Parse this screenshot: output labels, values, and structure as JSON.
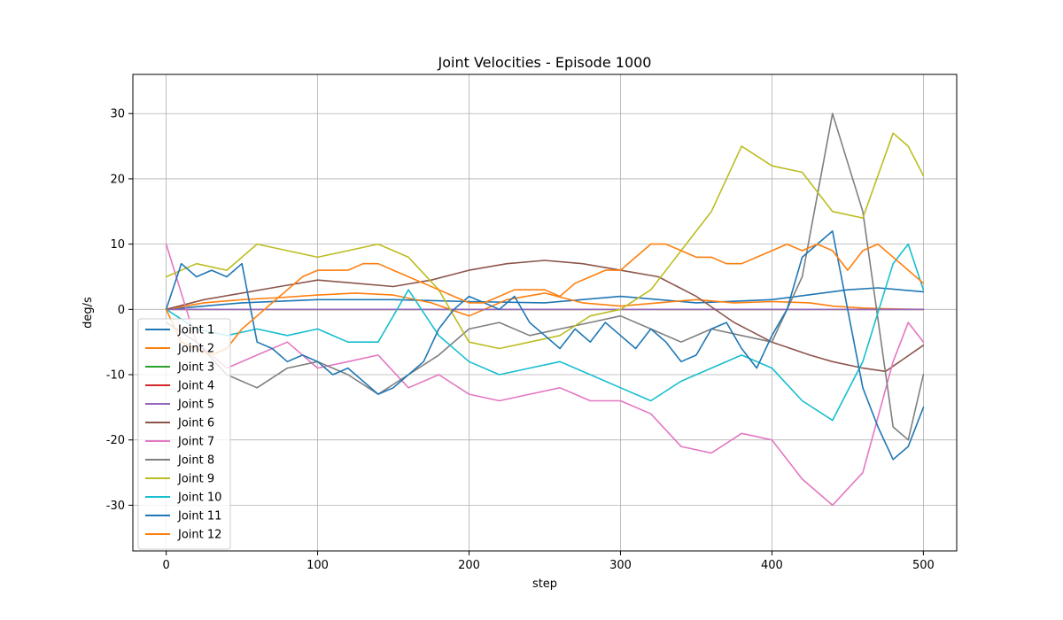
{
  "chart_data": {
    "type": "line",
    "title": "Joint Velocities - Episode 1000",
    "xlabel": "step",
    "ylabel": "deg/s",
    "xlim": [
      -22,
      522
    ],
    "ylim": [
      -37,
      36
    ],
    "xticks": [
      0,
      100,
      200,
      300,
      400,
      500
    ],
    "yticks": [
      -30,
      -20,
      -10,
      0,
      10,
      20,
      30
    ],
    "grid": true,
    "legend_position": "lower-left",
    "colors": {
      "c1": "#1f77b4",
      "c2": "#ff7f0e",
      "c3": "#2ca02c",
      "c4": "#d62728",
      "c5": "#9467bd",
      "c6": "#8c564b",
      "c7": "#e377c2",
      "c8": "#7f7f7f",
      "c9": "#bcbd22",
      "c10": "#17becf"
    },
    "series": [
      {
        "name": "Joint 1",
        "color": "#1f77b4",
        "x": [
          0,
          50,
          100,
          150,
          200,
          250,
          300,
          350,
          400,
          450,
          470,
          500
        ],
        "y": [
          0,
          1.0,
          1.5,
          1.5,
          1.2,
          1.0,
          2.0,
          1.0,
          1.5,
          3.0,
          3.3,
          2.7
        ]
      },
      {
        "name": "Joint 2",
        "color": "#ff7f0e",
        "x": [
          0,
          25,
          50,
          75,
          100,
          125,
          150,
          175,
          200,
          225,
          250,
          275,
          300,
          325,
          350,
          375,
          400,
          425,
          440,
          460,
          475,
          500
        ],
        "y": [
          0,
          1.0,
          1.5,
          1.8,
          2.2,
          2.5,
          2.2,
          1.0,
          -1.0,
          1.5,
          2.5,
          1.0,
          0.5,
          1.0,
          1.5,
          1.0,
          1.2,
          1.0,
          0.5,
          0.2,
          0.1,
          0
        ]
      },
      {
        "name": "Joint 3",
        "color": "#2ca02c",
        "x": [
          0,
          500
        ],
        "y": [
          0,
          0
        ]
      },
      {
        "name": "Joint 4",
        "color": "#d62728",
        "x": [
          0,
          500
        ],
        "y": [
          0,
          0
        ]
      },
      {
        "name": "Joint 5",
        "color": "#9467bd",
        "x": [
          0,
          500
        ],
        "y": [
          0,
          0
        ]
      },
      {
        "name": "Joint 6",
        "color": "#8c564b",
        "x": [
          0,
          25,
          50,
          75,
          100,
          125,
          150,
          175,
          200,
          225,
          250,
          275,
          300,
          325,
          350,
          375,
          400,
          425,
          440,
          460,
          475,
          500
        ],
        "y": [
          0,
          1.5,
          2.5,
          3.5,
          4.5,
          4.0,
          3.5,
          4.5,
          6.0,
          7.0,
          7.5,
          7.0,
          6.0,
          5.0,
          2.0,
          -2.0,
          -5.0,
          -7.0,
          -8.0,
          -9.0,
          -9.5,
          -5.5
        ]
      },
      {
        "name": "Joint 7",
        "color": "#e377c2",
        "x": [
          0,
          20,
          40,
          60,
          80,
          100,
          120,
          140,
          160,
          180,
          200,
          220,
          240,
          260,
          280,
          300,
          320,
          340,
          360,
          380,
          400,
          420,
          440,
          460,
          480,
          490,
          500
        ],
        "y": [
          10,
          -5,
          -9,
          -7,
          -5,
          -9,
          -8,
          -7,
          -12,
          -10,
          -13,
          -14,
          -13,
          -12,
          -14,
          -14,
          -16,
          -21,
          -22,
          -19,
          -20,
          -26,
          -30,
          -25,
          -8,
          -2,
          -5
        ]
      },
      {
        "name": "Joint 8",
        "color": "#7f7f7f",
        "x": [
          0,
          20,
          40,
          60,
          80,
          100,
          120,
          140,
          160,
          180,
          200,
          220,
          240,
          260,
          280,
          300,
          320,
          340,
          360,
          380,
          400,
          420,
          440,
          460,
          480,
          490,
          500
        ],
        "y": [
          -2,
          -5,
          -10,
          -12,
          -9,
          -8,
          -10,
          -13,
          -10,
          -7,
          -3,
          -2,
          -4,
          -3,
          -2,
          -1,
          -3,
          -5,
          -3,
          -4,
          -5,
          5,
          30,
          15,
          -18,
          -20,
          -10
        ]
      },
      {
        "name": "Joint 9",
        "color": "#bcbd22",
        "x": [
          0,
          20,
          40,
          60,
          80,
          100,
          120,
          140,
          160,
          180,
          200,
          220,
          240,
          260,
          280,
          300,
          320,
          340,
          360,
          380,
          400,
          420,
          440,
          460,
          480,
          490,
          500
        ],
        "y": [
          5,
          7,
          6,
          10,
          9,
          8,
          9,
          10,
          8,
          3,
          -5,
          -6,
          -5,
          -4,
          -1,
          0,
          3,
          9,
          15,
          25,
          22,
          21,
          15,
          14,
          27,
          25,
          20.5
        ]
      },
      {
        "name": "Joint 10",
        "color": "#17becf",
        "x": [
          0,
          20,
          40,
          60,
          80,
          100,
          120,
          140,
          160,
          180,
          200,
          220,
          240,
          260,
          280,
          300,
          320,
          340,
          360,
          380,
          400,
          420,
          440,
          460,
          480,
          490,
          500
        ],
        "y": [
          0,
          -3,
          -4,
          -3,
          -4,
          -3,
          -5,
          -5,
          3,
          -4,
          -8,
          -10,
          -9,
          -8,
          -10,
          -12,
          -14,
          -11,
          -9,
          -7,
          -9,
          -14,
          -17,
          -8,
          7,
          10,
          3
        ]
      },
      {
        "name": "Joint 11",
        "color": "#1f77b4",
        "x": [
          0,
          10,
          20,
          30,
          40,
          50,
          60,
          70,
          80,
          90,
          100,
          110,
          120,
          130,
          140,
          150,
          160,
          170,
          180,
          190,
          200,
          210,
          220,
          230,
          240,
          250,
          260,
          270,
          280,
          290,
          300,
          310,
          320,
          330,
          340,
          350,
          360,
          370,
          380,
          390,
          400,
          410,
          420,
          430,
          440,
          450,
          460,
          470,
          480,
          490,
          500
        ],
        "y": [
          0,
          7,
          5,
          6,
          5,
          7,
          -5,
          -6,
          -8,
          -7,
          -8,
          -10,
          -9,
          -11,
          -13,
          -12,
          -10,
          -8,
          -3,
          0,
          2,
          1,
          0,
          2,
          -2,
          -4,
          -6,
          -3,
          -5,
          -2,
          -4,
          -6,
          -3,
          -5,
          -8,
          -7,
          -3,
          -2,
          -6,
          -9,
          -4,
          0,
          8,
          10,
          12,
          0,
          -12,
          -18,
          -23,
          -21,
          -15
        ]
      },
      {
        "name": "Joint 12",
        "color": "#ff7f0e",
        "x": [
          0,
          10,
          20,
          30,
          40,
          50,
          60,
          70,
          80,
          90,
          100,
          110,
          120,
          130,
          140,
          150,
          160,
          170,
          180,
          190,
          200,
          210,
          220,
          230,
          240,
          250,
          260,
          270,
          280,
          290,
          300,
          310,
          320,
          330,
          340,
          350,
          360,
          370,
          380,
          390,
          400,
          410,
          420,
          430,
          440,
          450,
          460,
          470,
          480,
          490,
          500
        ],
        "y": [
          0,
          -5,
          -6,
          -7,
          -6,
          -3,
          -1,
          1,
          3,
          5,
          6,
          6,
          6,
          7,
          7,
          6,
          5,
          4,
          3,
          2,
          1,
          1,
          2,
          3,
          3,
          3,
          2,
          4,
          5,
          6,
          6,
          8,
          10,
          10,
          9,
          8,
          8,
          7,
          7,
          8,
          9,
          10,
          9,
          10,
          9,
          6,
          9,
          10,
          8,
          6,
          4
        ]
      }
    ]
  }
}
